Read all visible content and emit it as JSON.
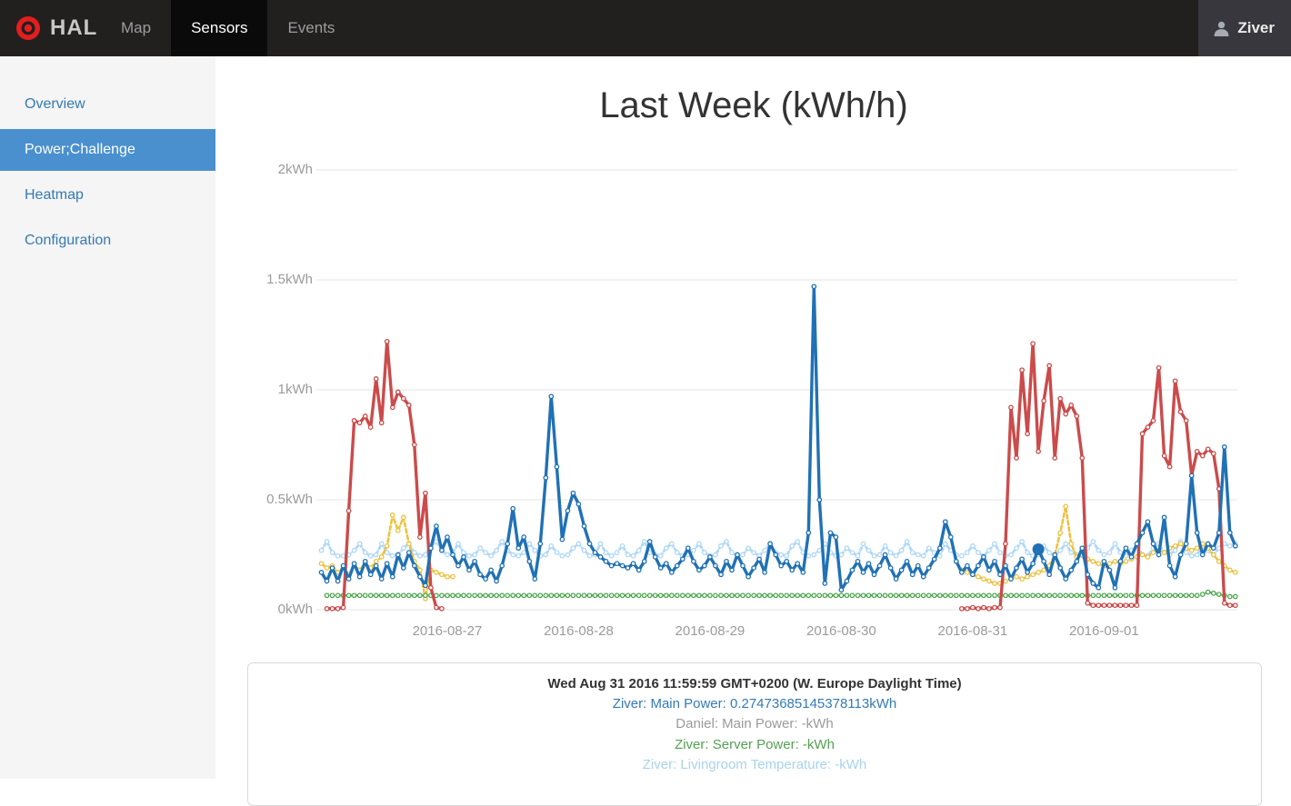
{
  "theme": {
    "navbar_bg": "#221f1f",
    "active_tab_bg": "#0a0a0a",
    "logo_red": "#e31e1e",
    "sidebar_bg": "#f5f5f5",
    "sidebar_active_bg": "#4a90cf",
    "link_color": "#337ab7",
    "grid_color": "#e6e6e6",
    "axis_label_color": "#9b9b9b"
  },
  "navbar": {
    "brand": "HAL",
    "items": [
      {
        "label": "Map",
        "active": false
      },
      {
        "label": "Sensors",
        "active": true
      },
      {
        "label": "Events",
        "active": false
      }
    ],
    "user": "Ziver"
  },
  "sidebar": {
    "items": [
      {
        "label": "Overview",
        "active": false
      },
      {
        "label": "Power;Challenge",
        "active": true
      },
      {
        "label": "Heatmap",
        "active": false
      },
      {
        "label": "Configuration",
        "active": false
      }
    ]
  },
  "chart_data": {
    "type": "line",
    "title": "Last Week (kWh/h)",
    "x_axis": {
      "start": "2016-08-26 01:00",
      "step_hours": 1,
      "hours_span": 168,
      "tick_labels": [
        "2016-08-27",
        "2016-08-28",
        "2016-08-29",
        "2016-08-30",
        "2016-08-31",
        "2016-09-01"
      ],
      "tick_hour_indices": [
        23,
        47,
        71,
        95,
        119,
        143
      ]
    },
    "y_axis": {
      "tick_labels": [
        "0kWh",
        "0.5kWh",
        "1kWh",
        "1.5kWh",
        "2kWh"
      ],
      "tick_values": [
        0,
        0.5,
        1,
        1.5,
        2
      ],
      "min": 0,
      "max": 2
    },
    "grid": true,
    "legend_position": "none",
    "highlight": {
      "series": "series-blue-main-power",
      "index": 131,
      "value": 0.27473685145378113
    },
    "series": [
      {
        "id": "series-lightblue-temperature",
        "name": "Ziver: Livingroom Temperature",
        "color": "#afd8f8",
        "style": "dashed",
        "marker": true,
        "segments": [
          {
            "start": 0,
            "values": [
              0.27,
              0.31,
              0.26,
              0.245,
              0.245,
              0.25,
              0.27,
              0.3,
              0.26,
              0.245,
              0.25,
              0.3,
              0.26,
              0.245,
              0.25,
              0.28,
              0.3,
              0.26,
              0.245,
              0.25,
              0.29,
              0.31,
              0.27,
              0.25,
              0.26,
              0.3,
              0.26,
              0.245,
              0.25,
              0.28,
              0.26,
              0.245,
              0.27,
              0.31,
              0.27,
              0.25,
              0.245,
              0.26,
              0.3,
              0.27,
              0.245,
              0.25,
              0.29,
              0.26,
              0.245,
              0.25,
              0.28,
              0.3,
              0.27,
              0.245,
              0.25,
              0.3,
              0.26,
              0.245,
              0.26,
              0.29,
              0.25,
              0.245,
              0.27,
              0.31,
              0.26,
              0.25,
              0.245,
              0.28,
              0.3,
              0.26,
              0.245,
              0.25,
              0.27,
              0.3,
              0.26,
              0.245,
              0.25,
              0.29,
              0.31,
              0.26,
              0.245,
              0.25,
              0.28,
              0.26,
              0.245,
              0.27,
              0.3,
              0.26,
              0.25,
              0.245,
              0.29,
              0.31,
              0.26,
              0.245,
              0.25,
              0.27,
              0.3,
              0.26,
              0.245,
              0.25,
              0.28,
              0.26,
              0.245,
              0.3,
              0.27,
              0.245,
              0.25,
              0.29,
              0.26,
              0.245,
              0.27,
              0.31,
              0.26,
              0.25,
              0.245,
              0.28,
              0.26,
              0.245,
              0.3,
              0.27,
              0.25,
              0.245,
              0.26,
              0.29,
              0.26,
              0.245,
              0.27,
              0.3,
              0.26,
              0.245,
              0.25,
              0.28,
              0.31,
              0.26,
              0.245,
              0.25,
              0.29,
              0.26,
              0.245,
              0.27,
              0.3,
              0.26,
              0.25,
              0.245,
              0.28,
              0.31,
              0.27,
              0.25,
              0.26,
              0.3,
              0.26,
              0.245,
              0.27,
              0.29,
              0.25,
              0.245,
              0.28,
              0.3,
              0.26,
              0.25,
              0.27,
              0.31,
              0.26,
              0.245,
              0.25,
              0.29,
              0.27,
              0.25,
              0.28,
              0.3,
              0.29,
              0.3
            ]
          }
        ]
      },
      {
        "id": "series-yellow",
        "name": "(unlabeled yellow series)",
        "color": "#edc240",
        "style": "dashed",
        "marker": true,
        "segments": [
          {
            "start": 0,
            "values": [
              0.21,
              0.19,
              0.2,
              0.17,
              0.19,
              0.16,
              0.2,
              0.18,
              0.21,
              0.19,
              0.22,
              0.24,
              0.29,
              0.43,
              0.36,
              0.42,
              0.3,
              0.22,
              0.18,
              0.05,
              0.18,
              0.17,
              0.16,
              0.15,
              0.15
            ]
          },
          {
            "start": 117,
            "values": [
              0.18,
              0.17,
              0.16,
              0.15,
              0.14,
              0.13,
              0.12,
              0.12,
              0.13,
              0.14,
              0.15,
              0.14,
              0.15,
              0.16,
              0.17,
              0.18,
              0.2,
              0.25,
              0.35,
              0.47,
              0.3,
              0.24,
              0.25,
              0.23,
              0.22,
              0.21,
              0.2,
              0.21,
              0.22,
              0.21,
              0.22,
              0.23,
              0.24,
              0.25,
              0.24,
              0.26,
              0.27,
              0.26,
              0.28,
              0.29,
              0.3,
              0.28,
              0.27,
              0.28,
              0.3,
              0.28,
              0.25,
              0.22,
              0.2,
              0.18,
              0.17
            ]
          }
        ]
      },
      {
        "id": "series-green-server-power",
        "name": "Ziver: Server Power",
        "color": "#4da74d",
        "style": "dashed",
        "marker": true,
        "segments": [
          {
            "start": 1,
            "values": [
              0.065,
              0.065,
              0.065,
              0.065,
              0.065,
              0.065,
              0.065,
              0.065,
              0.065,
              0.065,
              0.065,
              0.065,
              0.065,
              0.065,
              0.065,
              0.065,
              0.065,
              0.065,
              0.065,
              0.065,
              0.065,
              0.065,
              0.065,
              0.065,
              0.065,
              0.065,
              0.065,
              0.065,
              0.065,
              0.065,
              0.065,
              0.065,
              0.065,
              0.065,
              0.065,
              0.065,
              0.065,
              0.065,
              0.065,
              0.065,
              0.065,
              0.065,
              0.065,
              0.065,
              0.065,
              0.065,
              0.065,
              0.065,
              0.065,
              0.065,
              0.065,
              0.065,
              0.065,
              0.065,
              0.065,
              0.065,
              0.065,
              0.065,
              0.065,
              0.065,
              0.065,
              0.065,
              0.065,
              0.065,
              0.065,
              0.065,
              0.065,
              0.065,
              0.065,
              0.065,
              0.065,
              0.065,
              0.065,
              0.065,
              0.065,
              0.065,
              0.065,
              0.065,
              0.065,
              0.065,
              0.065,
              0.065,
              0.065,
              0.065,
              0.065,
              0.065,
              0.065,
              0.065,
              0.065,
              0.065,
              0.065,
              0.065,
              0.065,
              0.065,
              0.065,
              0.065,
              0.065,
              0.065,
              0.065,
              0.065,
              0.065,
              0.065,
              0.065,
              0.065,
              0.065,
              0.065,
              0.065,
              0.065,
              0.065,
              0.065,
              0.065,
              0.065,
              0.065,
              0.065,
              0.065,
              0.065,
              0.065,
              0.065,
              0.065,
              0.065,
              0.065,
              0.065,
              0.065,
              0.065,
              0.065,
              0.065,
              0.065,
              0.065,
              0.065,
              0.065,
              0.065,
              0.065,
              0.065,
              0.065,
              0.065,
              0.065,
              0.065,
              0.065,
              0.065,
              0.065,
              0.065,
              0.065,
              0.065,
              0.065,
              0.065,
              0.065,
              0.065,
              0.065,
              0.065,
              0.065,
              0.065,
              0.065,
              0.065,
              0.065,
              0.065,
              0.065,
              0.065,
              0.065,
              0.065,
              0.065,
              0.07,
              0.08,
              0.075,
              0.07,
              0.065,
              0.06,
              0.06
            ]
          }
        ]
      },
      {
        "id": "series-red-main-power",
        "name": "Daniel: Main Power",
        "color": "#cb4b4b",
        "style": "solid",
        "marker": true,
        "segments": [
          {
            "start": 1,
            "values": [
              0.005,
              0.005,
              0.005,
              0.01,
              0.45,
              0.86,
              0.85,
              0.88,
              0.83,
              1.05,
              0.85,
              1.22,
              0.92,
              0.99,
              0.96,
              0.93,
              0.75,
              0.33,
              0.53,
              0.1,
              0.01,
              0.005
            ]
          },
          {
            "start": 117,
            "values": [
              0.005,
              0.005,
              0.01,
              0.005,
              0.01,
              0.005,
              0.01,
              0.01,
              0.3,
              0.92,
              0.69,
              1.09,
              0.8,
              1.21,
              0.72,
              0.95,
              1.11,
              0.69,
              0.96,
              0.89,
              0.93,
              0.88,
              0.69,
              0.03,
              0.02,
              0.02,
              0.02,
              0.02,
              0.02,
              0.02,
              0.02,
              0.02,
              0.02,
              0.8,
              0.83,
              0.86,
              1.1,
              0.7,
              0.65,
              1.04,
              0.9,
              0.86,
              0.61,
              0.72,
              0.7,
              0.73,
              0.71,
              0.55,
              0.03,
              0.02,
              0.02
            ]
          }
        ]
      },
      {
        "id": "series-blue-main-power",
        "name": "Ziver: Main Power",
        "color": "#2071b5",
        "style": "solid",
        "marker": true,
        "segments": [
          {
            "start": 0,
            "values": [
              0.17,
              0.13,
              0.19,
              0.13,
              0.2,
              0.14,
              0.21,
              0.15,
              0.22,
              0.16,
              0.2,
              0.14,
              0.21,
              0.15,
              0.25,
              0.19,
              0.26,
              0.2,
              0.15,
              0.11,
              0.28,
              0.38,
              0.27,
              0.33,
              0.25,
              0.2,
              0.24,
              0.18,
              0.22,
              0.16,
              0.14,
              0.18,
              0.13,
              0.2,
              0.3,
              0.46,
              0.28,
              0.33,
              0.22,
              0.14,
              0.3,
              0.6,
              0.97,
              0.65,
              0.32,
              0.45,
              0.53,
              0.48,
              0.38,
              0.3,
              0.26,
              0.24,
              0.22,
              0.2,
              0.21,
              0.2,
              0.19,
              0.21,
              0.18,
              0.22,
              0.31,
              0.24,
              0.19,
              0.21,
              0.17,
              0.2,
              0.23,
              0.28,
              0.22,
              0.18,
              0.2,
              0.24,
              0.2,
              0.16,
              0.22,
              0.18,
              0.25,
              0.2,
              0.15,
              0.19,
              0.23,
              0.17,
              0.3,
              0.25,
              0.2,
              0.22,
              0.18,
              0.21,
              0.17,
              0.35,
              1.47,
              0.5,
              0.12,
              0.35,
              0.33,
              0.09,
              0.13,
              0.18,
              0.22,
              0.17,
              0.21,
              0.16,
              0.2,
              0.25,
              0.19,
              0.14,
              0.18,
              0.22,
              0.16,
              0.2,
              0.15,
              0.19,
              0.23,
              0.28,
              0.4,
              0.33,
              0.22,
              0.17,
              0.2,
              0.16,
              0.2,
              0.24,
              0.18,
              0.22,
              0.16,
              0.2,
              0.14,
              0.19,
              0.23,
              0.17,
              0.21,
              0.2747,
              0.22,
              0.16,
              0.25,
              0.19,
              0.14,
              0.18,
              0.22,
              0.28,
              0.16,
              0.12,
              0.1,
              0.22,
              0.18,
              0.1,
              0.22,
              0.28,
              0.24,
              0.3,
              0.35,
              0.4,
              0.3,
              0.25,
              0.42,
              0.2,
              0.15,
              0.25,
              0.3,
              0.61,
              0.35,
              0.25,
              0.3,
              0.28,
              0.35,
              0.74,
              0.35,
              0.29
            ]
          }
        ]
      }
    ]
  },
  "tooltip_panel": {
    "timestamp": "Wed Aug 31 2016 11:59:59 GMT+0200 (W. Europe Daylight Time)",
    "rows": [
      {
        "text": "Ziver: Main Power: 0.27473685145378113kWh",
        "color": "#337ab7"
      },
      {
        "text": "Daniel: Main Power: -kWh",
        "color": "#9a9a9a"
      },
      {
        "text": "Ziver: Server Power: -kWh",
        "color": "#55a055"
      },
      {
        "text": "Ziver: Livingroom Temperature: -kWh",
        "color": "#a9d2ee"
      }
    ]
  }
}
